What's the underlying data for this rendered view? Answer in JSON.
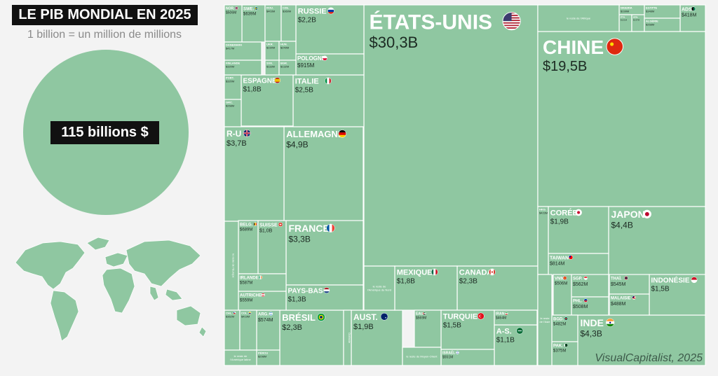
{
  "title": "LE PIB MONDIAL EN 2025",
  "subtitle": "1 billion = un million de millions",
  "total_label": "115 billions $",
  "source": "VisualCapitalist, 2025",
  "colors": {
    "tile": "#8fc7a1",
    "border": "#ffffff",
    "text": "#1c2a22",
    "label_bg": "#111111"
  },
  "chart_data": {
    "type": "treemap",
    "title": "LE PIB MONDIAL EN 2025",
    "unit": "1 billion = un million de millions",
    "items": [
      {
        "name": "ÉTATS-UNIS",
        "value": "$30,3B",
        "flag": "us"
      },
      {
        "name": "CHINE",
        "value": "$19,5B",
        "flag": "cn"
      },
      {
        "name": "ALLEMAGNE",
        "value": "$4,9B",
        "flag": "de"
      },
      {
        "name": "JAPON",
        "value": "$4,4B",
        "flag": "jp"
      },
      {
        "name": "INDE",
        "value": "$4,3B",
        "flag": "in"
      },
      {
        "name": "R-U",
        "value": "$3,7B",
        "flag": "gb"
      },
      {
        "name": "FRANCE",
        "value": "$3,3B",
        "flag": "fr"
      },
      {
        "name": "ITALIE",
        "value": "$2,5B",
        "flag": "it"
      },
      {
        "name": "CANADA",
        "value": "$2,3B",
        "flag": "ca"
      },
      {
        "name": "BRÉSIL",
        "value": "$2,3B",
        "flag": "br"
      },
      {
        "name": "RUSSIE",
        "value": "$2,2B",
        "flag": "ru"
      },
      {
        "name": "CORÉE",
        "value": "$1,9B",
        "flag": "kr"
      },
      {
        "name": "AUST.",
        "value": "$1,9B",
        "flag": "au"
      },
      {
        "name": "ESPAGNE",
        "value": "$1,8B",
        "flag": "es"
      },
      {
        "name": "MEXIQUE",
        "value": "$1,8B",
        "flag": "mx"
      },
      {
        "name": "INDONÉSIE",
        "value": "$1,5B",
        "flag": "id"
      },
      {
        "name": "TURQUIE",
        "value": "$1,5B",
        "flag": "tr"
      },
      {
        "name": "PAYS-BAS",
        "value": "$1,3B",
        "flag": "nl"
      },
      {
        "name": "A-S.",
        "value": "$1,1B",
        "flag": "sa"
      },
      {
        "name": "SUISSE",
        "value": "$1,0B",
        "flag": "ch"
      },
      {
        "name": "POLOGNE",
        "value": "$915M",
        "flag": "pl"
      },
      {
        "name": "TAIWAN",
        "value": "$814M",
        "flag": "tw"
      },
      {
        "name": "BELG.",
        "value": "$689M",
        "flag": "be"
      },
      {
        "name": "SWE.",
        "value": "$639M",
        "flag": "se"
      },
      {
        "name": "ARG.",
        "value": "$574M",
        "flag": "ar"
      },
      {
        "name": "SGP.",
        "value": "$562M",
        "flag": "sg"
      },
      {
        "name": "AUTRICHE",
        "value": "$559M",
        "flag": "at"
      },
      {
        "name": "IRLANDE",
        "value": "$587M",
        "flag": "ie"
      },
      {
        "name": "ISRAËL",
        "value": "$551M",
        "flag": "il"
      },
      {
        "name": "THAÏ.",
        "value": "$545M",
        "flag": "th"
      },
      {
        "name": "EAU",
        "value": "$569M",
        "flag": "ae"
      },
      {
        "name": "PHL.",
        "value": "$508M",
        "flag": "ph"
      },
      {
        "name": "VNM",
        "value": "$506M",
        "flag": "vn"
      },
      {
        "name": "NOR.",
        "value": "$506M",
        "flag": "no"
      },
      {
        "name": "MALAISIE",
        "value": "$488M",
        "flag": "my"
      },
      {
        "name": "BGD.",
        "value": "$482M",
        "flag": "bd"
      },
      {
        "name": "IRAN",
        "value": "$464M",
        "flag": "ir"
      },
      {
        "name": "ADS",
        "value": "$418M",
        "flag": "za"
      },
      {
        "name": "CHL.",
        "value": "$362M",
        "flag": "cl"
      },
      {
        "name": "COL.",
        "value": "$419M",
        "flag": "co"
      },
      {
        "name": "PAK.",
        "value": "$375M",
        "flag": "pk"
      },
      {
        "name": "DANEMARK",
        "value": "$417M",
        "flag": ""
      },
      {
        "name": "PORT.",
        "value": "$320M",
        "flag": ""
      },
      {
        "name": "FINLANDE",
        "value": "$320M",
        "flag": ""
      },
      {
        "name": "GRC.",
        "value": "$268M",
        "flag": ""
      },
      {
        "name": "ROU.",
        "value": "$403M",
        "flag": ""
      },
      {
        "name": "CZE.",
        "value": "$360M",
        "flag": ""
      },
      {
        "name": "UKR.",
        "value": "$190M",
        "flag": ""
      },
      {
        "name": "HUN.",
        "value": "$249M",
        "flag": ""
      },
      {
        "name": "SVK.",
        "value": "$118M",
        "flag": ""
      },
      {
        "name": "BGR.",
        "value": "$132M",
        "flag": ""
      },
      {
        "name": "HKG.",
        "value": "$423M",
        "flag": ""
      },
      {
        "name": "NIGERIA",
        "value": "$199M",
        "flag": ""
      },
      {
        "name": "EGYPTE",
        "value": "$348M",
        "flag": ""
      },
      {
        "name": "ÉTH.",
        "value": "$121M",
        "flag": ""
      },
      {
        "name": "KEN.",
        "value": "$137M",
        "flag": ""
      },
      {
        "name": "ALGÉRIE",
        "value": "$268M",
        "flag": ""
      },
      {
        "name": "PÉROU",
        "value": "$298M",
        "flag": ""
      },
      {
        "name": "le reste de l'Afrique",
        "value": "",
        "flag": ""
      },
      {
        "name": "le reste de l'Amérique du Nord",
        "value": "",
        "flag": ""
      },
      {
        "name": "le reste de l'Amérique latine",
        "value": "",
        "flag": ""
      },
      {
        "name": "le reste du Moyen-Orient",
        "value": "",
        "flag": ""
      },
      {
        "name": "le reste de l'Asie",
        "value": "",
        "flag": ""
      },
      {
        "name": "le reste de l'Europe",
        "value": "",
        "flag": ""
      },
      {
        "name": "Océanie",
        "value": "",
        "flag": ""
      }
    ]
  }
}
